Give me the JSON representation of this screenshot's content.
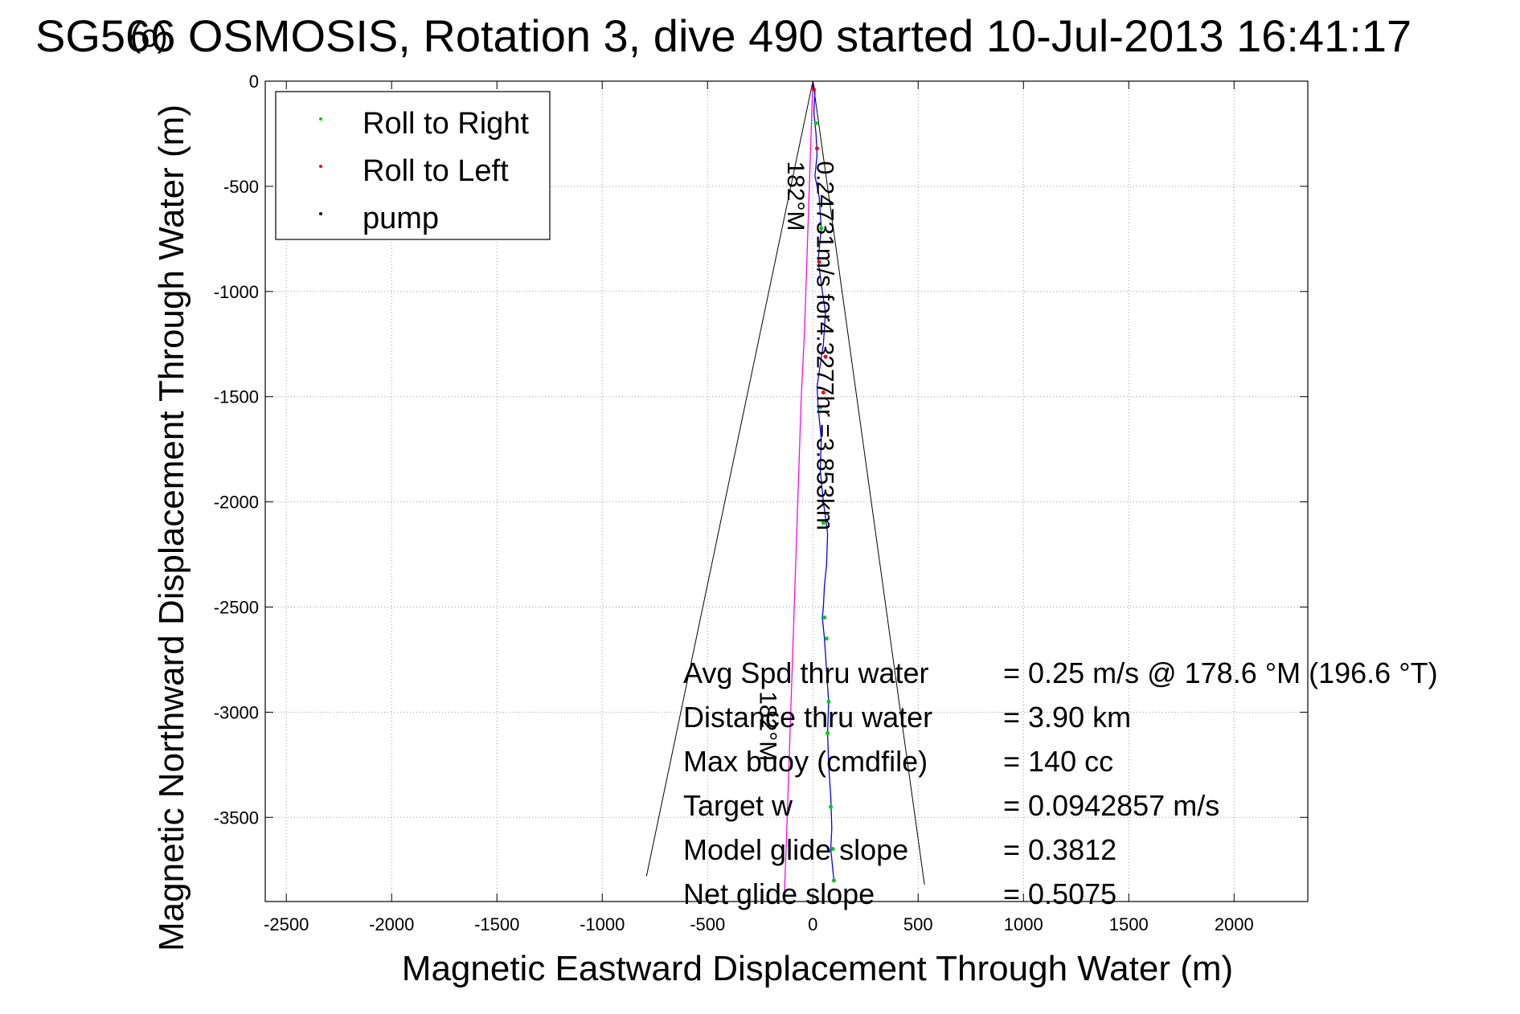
{
  "chart_data": {
    "type": "line",
    "title": "SG566 OSMOSIS, Rotation 3, dive 490 started 10-Jul-2013 16:41:17",
    "title_overprint": "(c)",
    "xlabel": "Magnetic Eastward Displacement Through Water (m)",
    "ylabel": "Magnetic Northward Displacement Through Water (m)",
    "xlim": [
      -2600,
      2350
    ],
    "ylim": [
      -3900,
      0
    ],
    "xticks": [
      -2500,
      -2000,
      -1500,
      -1000,
      -500,
      0,
      500,
      1000,
      1500,
      2000
    ],
    "yticks": [
      0,
      -500,
      -1000,
      -1500,
      -2000,
      -2500,
      -3000,
      -3500
    ],
    "grid": true,
    "legend": {
      "placement": "top-left",
      "entries": [
        {
          "label": "Roll to Right",
          "color": "#00cc00"
        },
        {
          "label": "Roll to Left",
          "color": "#ff0000"
        },
        {
          "label": "pump",
          "color": "#000000"
        }
      ]
    },
    "series": [
      {
        "color": "#0000ff",
        "x": [
          0,
          10,
          5,
          15,
          20,
          10,
          30,
          40,
          25,
          45,
          60,
          50,
          35,
          20,
          25,
          40,
          35,
          50,
          70,
          65,
          55,
          50,
          45,
          55,
          65,
          75,
          70,
          75,
          85,
          90,
          85,
          95,
          100
        ],
        "y": [
          0,
          -50,
          -150,
          -250,
          -350,
          -450,
          -550,
          -700,
          -850,
          -1000,
          -1100,
          -1250,
          -1350,
          -1450,
          -1550,
          -1700,
          -1850,
          -2000,
          -2150,
          -2300,
          -2400,
          -2500,
          -2550,
          -2650,
          -2800,
          -2950,
          -3100,
          -3250,
          -3400,
          -3550,
          -3650,
          -3750,
          -3800
        ]
      },
      {
        "color": "#ff00ff",
        "x": [
          0,
          -10,
          -20,
          -30,
          -40,
          -55,
          -65,
          -75,
          -85,
          -95,
          -105,
          -115,
          -125,
          -135
        ],
        "y": [
          0,
          -300,
          -600,
          -900,
          -1200,
          -1500,
          -1800,
          -2100,
          -2400,
          -2700,
          -3000,
          -3300,
          -3600,
          -3860
        ]
      },
      {
        "name": "Roll to Right",
        "color": "#00cc00",
        "marker_only": true,
        "x": [
          15,
          40,
          35,
          50,
          55,
          65,
          75,
          70,
          85,
          95,
          100
        ],
        "y": [
          -200,
          -700,
          -1550,
          -2100,
          -2550,
          -2650,
          -2950,
          -3100,
          -3450,
          -3650,
          -3800
        ]
      },
      {
        "name": "Roll to Left",
        "color": "#ff0000",
        "marker_only": true,
        "x": [
          5,
          20,
          30,
          60,
          50
        ],
        "y": [
          -40,
          -320,
          -860,
          -1310,
          -1480
        ]
      }
    ],
    "cone_lines": [
      {
        "color": "#000000",
        "x": [
          0,
          -790
        ],
        "y": [
          0,
          -3780
        ]
      },
      {
        "color": "#000000",
        "x": [
          0,
          530
        ],
        "y": [
          0,
          -3820
        ]
      }
    ],
    "rotated_annotations": [
      {
        "text": "182°M",
        "x": -120,
        "y": -380,
        "angle": 90
      },
      {
        "text": "0.24731m/s for4.3277hr =3.853km",
        "x": 20,
        "y": -380,
        "angle": 90
      },
      {
        "text": "182°M",
        "x": -250,
        "y": -2900,
        "angle": 90
      }
    ],
    "summary": [
      {
        "label": "Avg Spd thru water",
        "value": "=  0.25 m/s @ 178.6 °M (196.6 °T)"
      },
      {
        "label": "Distance thru water",
        "value": "=  3.90 km"
      },
      {
        "label": "Max buoy (cmdfile)",
        "value": "= 140 cc"
      },
      {
        "label": "Target w",
        "value": "= 0.0942857 m/s"
      },
      {
        "label": "Model glide slope",
        "value": "= 0.3812"
      },
      {
        "label": "Net glide slope",
        "value": "= 0.5075"
      }
    ]
  }
}
